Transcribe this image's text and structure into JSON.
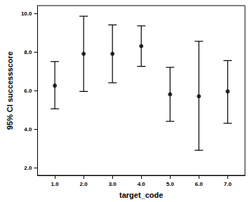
{
  "chart_data": {
    "type": "errorbar",
    "x_label": "target_code",
    "y_label": "95% CI successscore",
    "x": [
      1,
      2,
      3,
      4,
      5,
      6,
      7
    ],
    "values": [
      6.25,
      7.9,
      7.9,
      8.3,
      5.8,
      5.7,
      5.95
    ],
    "ci_lower": [
      5.05,
      5.95,
      6.4,
      7.25,
      4.4,
      2.9,
      4.3
    ],
    "ci_upper": [
      7.5,
      9.85,
      9.4,
      9.35,
      7.2,
      8.55,
      7.55
    ],
    "color": "#000000",
    "marker": "circle",
    "xlim": [
      0.4,
      7.6
    ],
    "xticks": [
      {
        "value": 1,
        "label": "1.0"
      },
      {
        "value": 2,
        "label": "2.0"
      },
      {
        "value": 3,
        "label": "3.0"
      },
      {
        "value": 4,
        "label": "4.0"
      },
      {
        "value": 5,
        "label": "5.0"
      },
      {
        "value": 6,
        "label": "6.0"
      },
      {
        "value": 7,
        "label": "7.0"
      }
    ],
    "ylim": [
      1.6,
      10.4
    ],
    "yticks": [
      {
        "value": 2,
        "label": "2.0"
      },
      {
        "value": 4,
        "label": "4.0"
      },
      {
        "value": 6,
        "label": "6.0"
      },
      {
        "value": 8,
        "label": "8.0"
      },
      {
        "value": 10,
        "label": "10.0"
      }
    ],
    "grid": false
  }
}
